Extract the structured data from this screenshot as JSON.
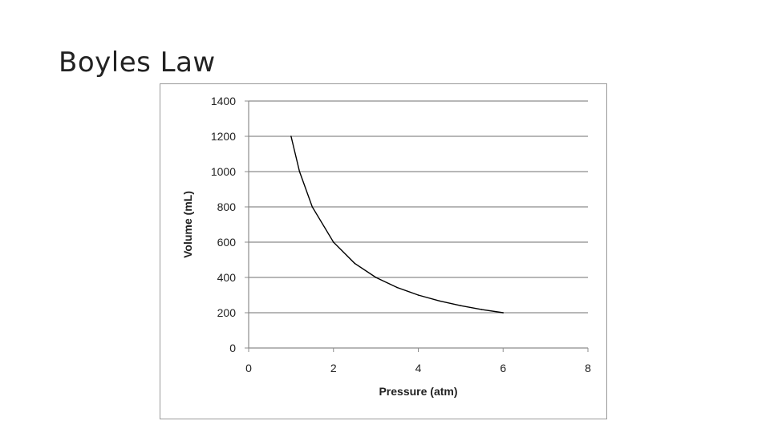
{
  "slide": {
    "title": "Boyles Law"
  },
  "chart_data": {
    "type": "line",
    "title": "",
    "xlabel": "Pressure (atm)",
    "ylabel": "Volume (mL)",
    "xlim": [
      0,
      8
    ],
    "ylim": [
      0,
      1400
    ],
    "xticks": [
      0,
      2,
      4,
      6,
      8
    ],
    "yticks": [
      0,
      200,
      400,
      600,
      800,
      1000,
      1200,
      1400
    ],
    "grid": "horizontal",
    "legend": "none",
    "series": [
      {
        "x": [
          1,
          1.2,
          1.5,
          2,
          2.5,
          3,
          3.5,
          4,
          4.5,
          5,
          5.5,
          6
        ],
        "y": [
          1200,
          1000,
          800,
          600,
          480,
          400,
          343,
          300,
          267,
          240,
          218,
          200
        ],
        "color": "#000000"
      }
    ]
  }
}
